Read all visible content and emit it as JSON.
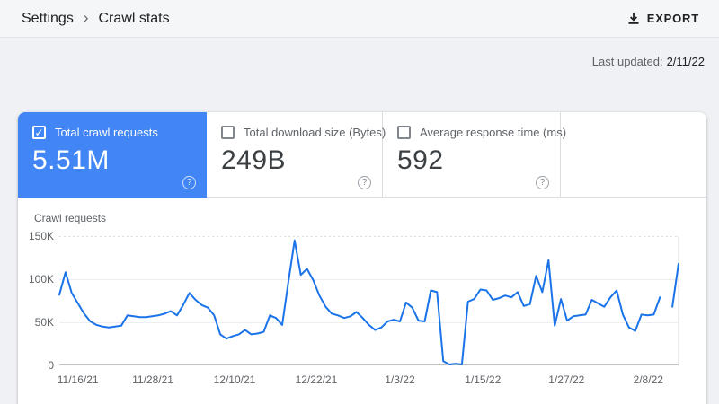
{
  "header": {
    "breadcrumb_settings": "Settings",
    "breadcrumb_current": "Crawl stats",
    "export_label": "EXPORT"
  },
  "meta": {
    "last_updated_label": "Last updated:",
    "last_updated_value": "2/11/22"
  },
  "icons": {
    "breadcrumb_separator": "›",
    "checkbox_check": "✓",
    "help": "?",
    "export": "download-icon"
  },
  "metrics": [
    {
      "label": "Total crawl requests",
      "value": "5.51M",
      "selected": true,
      "checked": true
    },
    {
      "label": "Total download size (Bytes)",
      "value": "249B",
      "selected": false,
      "checked": false
    },
    {
      "label": "Average response time (ms)",
      "value": "592",
      "selected": false,
      "checked": false
    }
  ],
  "colors": {
    "accent_blue": "#4285f4",
    "line_blue": "#1a73e8",
    "grid_light": "#eceef1",
    "grid_dotted": "#dadce0",
    "baseline": "#bdc1c6",
    "text_gray": "#5f6368",
    "text_dark": "#202124"
  },
  "chart_data": {
    "type": "line",
    "title": "Crawl requests",
    "xlabel": "",
    "ylabel": "Crawl requests",
    "ylim_thousands": [
      0,
      150
    ],
    "grid": true,
    "legend": "none",
    "y_ticks": [
      "150K",
      "100K",
      "50K",
      "0"
    ],
    "x_ticks": [
      "11/16/21",
      "11/28/21",
      "12/10/21",
      "12/22/21",
      "1/3/22",
      "1/15/22",
      "1/27/22",
      "2/8/22"
    ],
    "x_range": [
      "11/14/21",
      "2/11/22"
    ],
    "note": "daily values in thousands of requests; null = gap in series before final partial segment",
    "series": [
      {
        "name": "Total crawl requests",
        "color": "#1a73e8",
        "values_thousands": [
          82,
          108,
          84,
          72,
          60,
          51,
          47,
          45,
          44,
          45,
          46,
          58,
          57,
          56,
          56,
          57,
          58,
          60,
          63,
          58,
          70,
          84,
          76,
          70,
          67,
          58,
          36,
          31,
          34,
          36,
          41,
          36,
          37,
          39,
          58,
          55,
          47,
          97,
          145,
          105,
          112,
          99,
          81,
          68,
          60,
          58,
          55,
          57,
          62,
          55,
          47,
          41,
          44,
          51,
          53,
          51,
          73,
          67,
          52,
          51,
          87,
          85,
          5,
          1,
          2,
          1,
          74,
          77,
          88,
          87,
          76,
          78,
          81,
          79,
          85,
          69,
          71,
          104,
          85,
          122,
          46,
          77,
          52,
          57,
          58,
          59,
          76,
          72,
          68,
          79,
          87,
          59,
          44,
          40,
          59,
          58,
          59,
          79,
          null,
          68,
          118
        ]
      }
    ]
  }
}
